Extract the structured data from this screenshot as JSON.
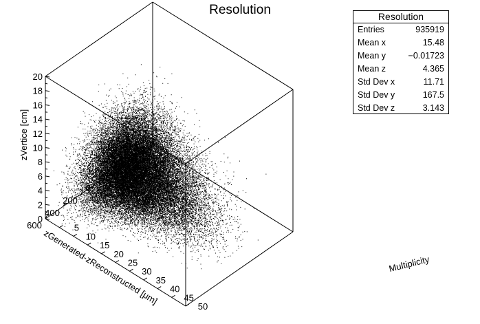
{
  "chart_data": {
    "type": "scatter",
    "title": "Resolution",
    "xlabel": "Multiplicity",
    "ylabel": "zGenerated-zReconstructed [μm]",
    "zlabel": "zVertice [cm]",
    "xlim": [
      0,
      50
    ],
    "ylim": [
      -600,
      600
    ],
    "zlim": [
      0,
      20
    ],
    "x_ticks": [
      "5",
      "10",
      "15",
      "20",
      "25",
      "30",
      "35",
      "40",
      "45",
      "50"
    ],
    "y_ticks": [
      "600",
      "400",
      "200",
      "0",
      "200",
      "400",
      "600"
    ],
    "z_ticks": [
      "0",
      "2",
      "4",
      "6",
      "8",
      "10",
      "12",
      "14",
      "16",
      "18",
      "20"
    ],
    "stats": {
      "title": "Resolution",
      "rows": [
        {
          "label": "Entries",
          "value": "935919"
        },
        {
          "label": "Mean x",
          "value": "15.48"
        },
        {
          "label": "Mean y",
          "value": "−0.01723"
        },
        {
          "label": "Mean z",
          "value": "4.365"
        },
        {
          "label": "Std Dev x",
          "value": "11.71"
        },
        {
          "label": "Std Dev y",
          "value": "167.5"
        },
        {
          "label": "Std Dev z",
          "value": "3.143"
        }
      ]
    },
    "distribution": {
      "mean_x": 15.48,
      "mean_y": -0.01723,
      "mean_z": 4.365,
      "std_x": 11.71,
      "std_y": 167.5,
      "std_z": 3.143
    }
  },
  "colors": {
    "points": "#000000",
    "axes": "#000000",
    "background": "#ffffff"
  }
}
